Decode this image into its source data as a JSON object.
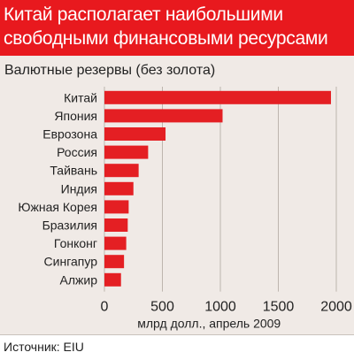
{
  "title": "Китай располагает наибольшими свободными финансовыми ресурсами",
  "source": "Источник: EIU",
  "colors": {
    "title_bg": "#e8191e",
    "bar": "#e41f23",
    "panel_bg": "#f0eae6"
  },
  "chart_data": {
    "type": "bar",
    "orientation": "horizontal",
    "title": "Валютные резервы (без золота)",
    "xlabel": "млрд долл., апрель 2009",
    "ylabel": "",
    "categories": [
      "Китай",
      "Япония",
      "Еврозона",
      "Россия",
      "Тайвань",
      "Индия",
      "Южная Корея",
      "Бразилия",
      "Гонконг",
      "Сингапур",
      "Алжир"
    ],
    "values": [
      1954,
      1019,
      527,
      377,
      295,
      250,
      209,
      201,
      188,
      169,
      143
    ],
    "xlim": [
      0,
      2000
    ],
    "xticks": [
      "0",
      "500",
      "1000",
      "1500",
      "2000"
    ],
    "grid": true,
    "legend": "none"
  }
}
